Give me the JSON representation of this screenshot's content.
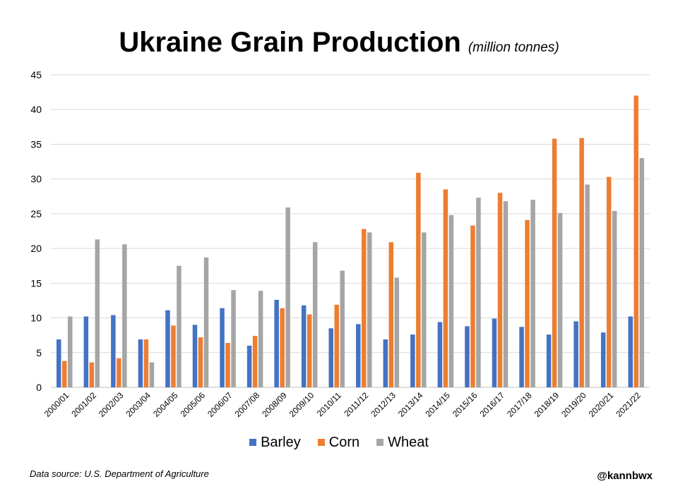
{
  "chart_data": {
    "type": "bar",
    "title": "Ukraine Grain Production",
    "subtitle": "(million tonnes)",
    "xlabel": "",
    "ylabel": "",
    "ylim": [
      0,
      45
    ],
    "yticks": [
      0,
      5,
      10,
      15,
      20,
      25,
      30,
      35,
      40,
      45
    ],
    "grid": true,
    "legend_position": "bottom",
    "categories": [
      "2000/01",
      "2001/02",
      "2002/03",
      "2003/04",
      "2004/05",
      "2005/06",
      "2006/07",
      "2007/08",
      "2008/09",
      "2009/10",
      "2010/11",
      "2011/12",
      "2012/13",
      "2013/14",
      "2014/15",
      "2015/16",
      "2016/17",
      "2017/18",
      "2018/19",
      "2019/20",
      "2020/21",
      "2021/22"
    ],
    "series": [
      {
        "name": "Barley",
        "color": "#4472c4",
        "values": [
          6.9,
          10.2,
          10.4,
          6.9,
          11.1,
          9.0,
          11.4,
          6.0,
          12.6,
          11.8,
          8.5,
          9.1,
          6.9,
          7.6,
          9.4,
          8.8,
          9.9,
          8.7,
          7.6,
          9.5,
          7.9,
          10.2
        ]
      },
      {
        "name": "Corn",
        "color": "#ed7d31",
        "values": [
          3.8,
          3.6,
          4.2,
          6.9,
          8.9,
          7.2,
          6.4,
          7.4,
          11.4,
          10.5,
          11.9,
          22.8,
          20.9,
          30.9,
          28.5,
          23.3,
          28.0,
          24.1,
          35.8,
          35.9,
          30.3,
          42.0
        ]
      },
      {
        "name": "Wheat",
        "color": "#a5a5a5",
        "values": [
          10.2,
          21.3,
          20.6,
          3.6,
          17.5,
          18.7,
          14.0,
          13.9,
          25.9,
          20.9,
          16.8,
          22.3,
          15.8,
          22.3,
          24.8,
          27.3,
          26.8,
          27.0,
          25.1,
          29.2,
          25.4,
          33.0
        ]
      }
    ]
  },
  "footer": {
    "source": "Data source: U.S. Department of Agriculture",
    "credit": "@kannbwx"
  }
}
